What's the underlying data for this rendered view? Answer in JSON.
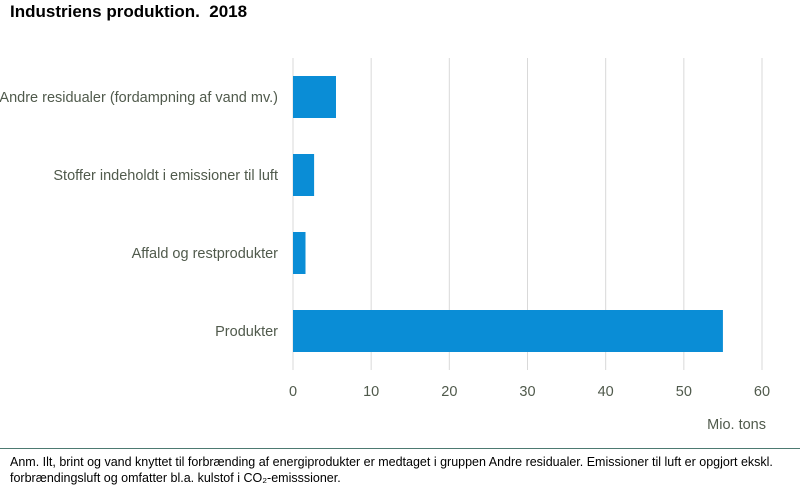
{
  "title": "Industriens produktion.  2018",
  "note": "Anm. Ilt, brint og vand knyttet til forbrænding af energiprodukter er medtaget i gruppen Andre residualer. Emissioner til luft er opgjort ekskl. forbrændingsluft og omfatter bl.a. kulstof i CO₂-emisssioner.",
  "chart_data": {
    "type": "bar",
    "orientation": "horizontal",
    "title": "Industriens produktion.  2018",
    "categories": [
      "Andre residualer (fordampning af vand mv.)",
      "Stoffer indeholdt i emissioner til luft",
      "Affald og restprodukter",
      "Produkter"
    ],
    "values": [
      5.5,
      2.7,
      1.6,
      55
    ],
    "xlim": [
      0,
      60
    ],
    "xticks": [
      0,
      10,
      20,
      30,
      40,
      50,
      60
    ],
    "xlabel": "Mio. tons",
    "grid": "vertical",
    "bar_color": "#0a8dd6",
    "grid_color": "#d9d9d9",
    "text_color": "#505a4c"
  }
}
